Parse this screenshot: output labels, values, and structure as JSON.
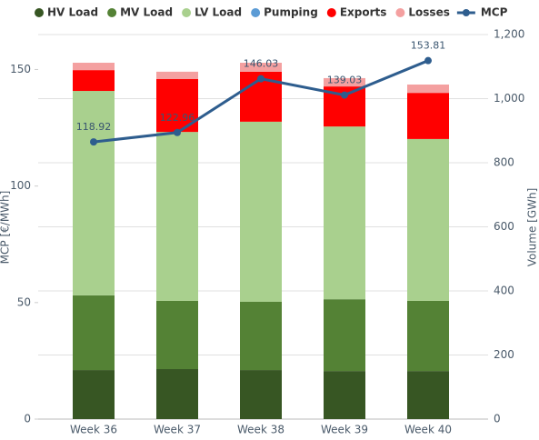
{
  "chart_data": {
    "type": "bar",
    "categories": [
      "Week 36",
      "Week 37",
      "Week 38",
      "Week 39",
      "Week 40"
    ],
    "series": [
      {
        "name": "HV Load",
        "color": "#375623",
        "axis": "y2",
        "values": [
          153,
          156,
          153,
          150,
          150
        ]
      },
      {
        "name": "MV Load",
        "color": "#548235",
        "axis": "y2",
        "values": [
          233,
          213,
          213,
          224,
          219
        ]
      },
      {
        "name": "LV Load",
        "color": "#a9d08e",
        "axis": "y2",
        "values": [
          638,
          527,
          562,
          539,
          505
        ]
      },
      {
        "name": "Pumping",
        "color": "#5b9bd5",
        "axis": "y2",
        "values": [
          0,
          0,
          0,
          0,
          0
        ]
      },
      {
        "name": "Exports",
        "color": "#ff0000",
        "axis": "y2",
        "values": [
          65,
          165,
          156,
          125,
          144
        ]
      },
      {
        "name": "Losses",
        "color": "#f4a0a0",
        "axis": "y2",
        "values": [
          23,
          23,
          28,
          26,
          26
        ]
      },
      {
        "name": "MCP",
        "color": "#2e5d8e",
        "type": "line",
        "values": [
          118.92,
          122.96,
          146.03,
          139.03,
          153.81
        ]
      }
    ],
    "ylabel": "MCP [€/MWh]",
    "y2label": "Volume [GWh]",
    "ylim": [
      0,
      165
    ],
    "yticks": [
      0,
      50,
      100,
      150
    ],
    "y2lim": [
      0,
      1200
    ],
    "y2ticks": [
      0,
      200,
      400,
      600,
      800,
      {
        "value": 1000,
        "label": "1,000"
      },
      {
        "value": 1200,
        "label": "1,200"
      }
    ],
    "grid": true,
    "legend": "top"
  }
}
